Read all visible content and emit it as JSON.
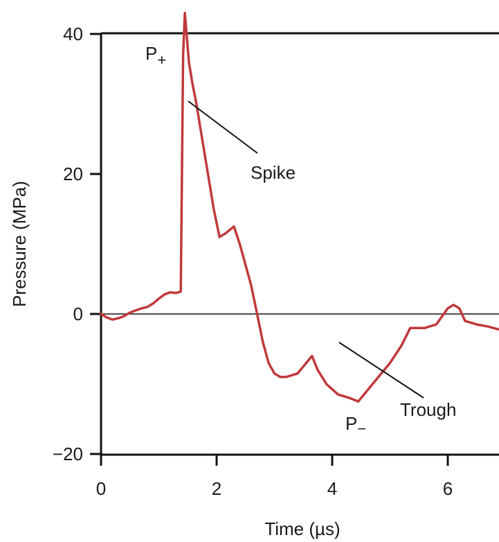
{
  "chart_data": {
    "type": "line",
    "title": "",
    "xlabel": "Time (µs)",
    "ylabel": "Pressure (MPa)",
    "xlim": [
      0,
      6.9
    ],
    "ylim": [
      -20,
      40
    ],
    "xticks": [
      "0",
      "2",
      "4",
      "6"
    ],
    "yticks": [
      "−20",
      "0",
      "20",
      "40"
    ],
    "grid": false,
    "colors": {
      "series": "#c0393b",
      "axes": "#111111",
      "annotation": "#1a1a1a"
    },
    "series": [
      {
        "x": [
          0,
          0.1,
          0.2,
          0.3,
          0.4,
          0.5,
          0.6,
          0.7,
          0.8,
          0.9,
          1.0,
          1.1,
          1.2,
          1.3,
          1.38,
          1.42,
          1.45,
          1.48,
          1.52,
          1.58,
          1.65,
          1.75,
          1.85,
          1.95,
          2.05,
          2.15,
          2.3,
          2.4,
          2.5,
          2.6,
          2.7,
          2.8,
          2.9,
          3.0,
          3.1,
          3.2,
          3.4,
          3.5,
          3.65,
          3.75,
          3.9,
          4.1,
          4.3,
          4.45,
          4.6,
          4.8,
          5.0,
          5.2,
          5.35,
          5.6,
          5.8,
          6.0,
          6.1,
          6.2,
          6.3,
          6.5,
          6.7,
          6.9
        ],
        "y": [
          0,
          -0.5,
          -0.8,
          -0.6,
          -0.3,
          0.2,
          0.5,
          0.8,
          1.0,
          1.5,
          2.2,
          2.8,
          3.1,
          3.0,
          3.2,
          37,
          43,
          40,
          36,
          33,
          30,
          25,
          20,
          15,
          11,
          11.5,
          12.5,
          10,
          7,
          4,
          0,
          -4,
          -7,
          -8.5,
          -9,
          -9,
          -8.5,
          -7.5,
          -6,
          -8,
          -10,
          -11.5,
          -12,
          -12.5,
          -11,
          -9,
          -7,
          -4.5,
          -2,
          -2,
          -1.5,
          0.8,
          1.3,
          0.8,
          -1,
          -1.5,
          -1.8,
          -2.2
        ]
      }
    ],
    "annotations": [
      {
        "text": "P",
        "sub": "+",
        "label": "P+"
      },
      {
        "text": "Spike",
        "x": 1.5,
        "y": 30
      },
      {
        "text": "P",
        "sub": "−",
        "label": "P−"
      },
      {
        "text": "Trough",
        "x": 4.1,
        "y": -4
      }
    ]
  }
}
